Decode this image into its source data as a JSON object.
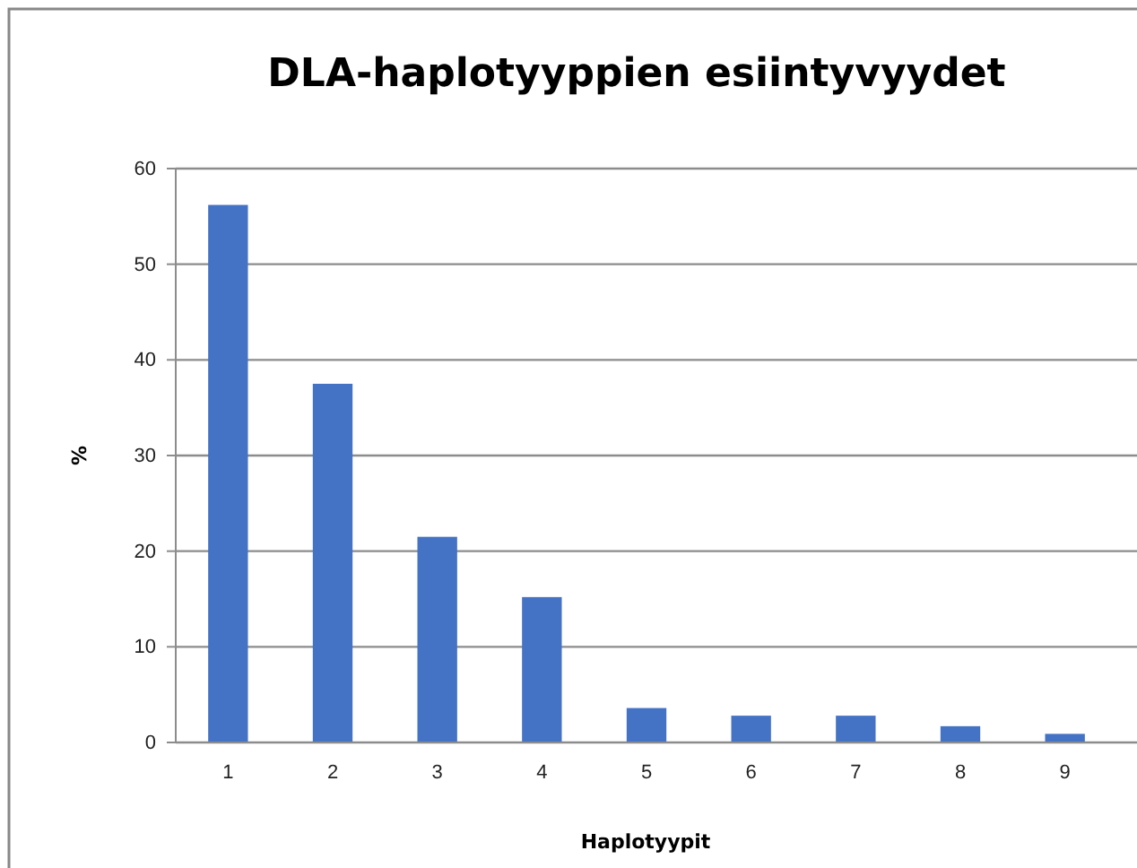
{
  "chart_data": {
    "type": "bar",
    "title": "DLA-haplotyyppien esiintyvyydet",
    "xlabel": "Haplotyypit",
    "ylabel": "%",
    "categories": [
      "1",
      "2",
      "3",
      "4",
      "5",
      "6",
      "7",
      "8",
      "9"
    ],
    "values": [
      56.2,
      37.5,
      21.5,
      15.2,
      3.6,
      2.8,
      2.8,
      1.7,
      0.9
    ],
    "color": "#4472c4",
    "ylim": [
      0,
      60
    ],
    "yticks": [
      0,
      10,
      20,
      30,
      40,
      50,
      60
    ],
    "grid": "y"
  }
}
